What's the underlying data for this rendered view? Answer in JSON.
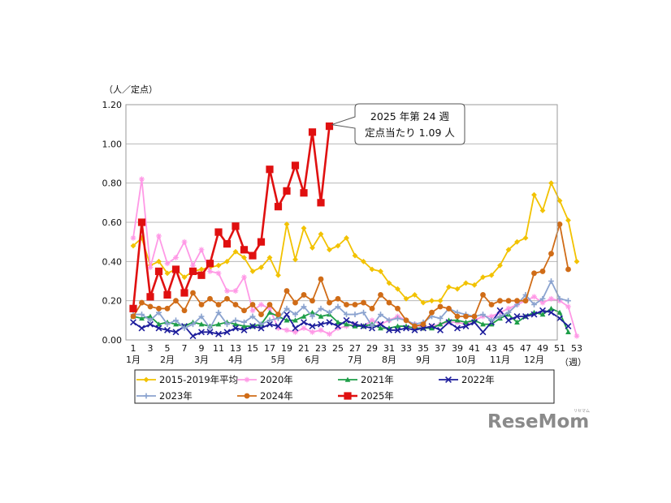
{
  "chart_data": {
    "type": "line",
    "ylabel": "（人／定点）",
    "xunit": "（週）",
    "ylim": [
      0,
      1.2
    ],
    "yticks": [
      "0.00",
      "0.20",
      "0.40",
      "0.60",
      "0.80",
      "1.00",
      "1.20"
    ],
    "xtick_weeks": [
      1,
      3,
      5,
      7,
      9,
      11,
      13,
      15,
      17,
      19,
      21,
      23,
      25,
      27,
      29,
      31,
      33,
      35,
      37,
      39,
      41,
      43,
      45,
      47,
      49,
      51,
      53
    ],
    "month_labels": [
      {
        "week": 1,
        "label": "1月"
      },
      {
        "week": 5,
        "label": "2月"
      },
      {
        "week": 9,
        "label": "3月"
      },
      {
        "week": 13,
        "label": "4月"
      },
      {
        "week": 18,
        "label": "5月"
      },
      {
        "week": 22,
        "label": "6月"
      },
      {
        "week": 27,
        "label": "7月"
      },
      {
        "week": 31,
        "label": "8月"
      },
      {
        "week": 35,
        "label": "9月"
      },
      {
        "week": 40,
        "label": "10月"
      },
      {
        "week": 44,
        "label": "11月"
      },
      {
        "week": 48,
        "label": "12月"
      }
    ],
    "grid": true,
    "legend_position": "bottom",
    "series": [
      {
        "name": "2015-2019年平均",
        "color": "#f2c200",
        "marker": "diamond",
        "values": [
          0.48,
          0.52,
          0.38,
          0.4,
          0.34,
          0.36,
          0.32,
          0.35,
          0.36,
          0.37,
          0.38,
          0.4,
          0.45,
          0.42,
          0.35,
          0.37,
          0.42,
          0.33,
          0.59,
          0.41,
          0.57,
          0.47,
          0.54,
          0.46,
          0.48,
          0.52,
          0.43,
          0.4,
          0.36,
          0.35,
          0.29,
          0.26,
          0.21,
          0.23,
          0.19,
          0.2,
          0.2,
          0.27,
          0.26,
          0.29,
          0.28,
          0.32,
          0.33,
          0.38,
          0.46,
          0.5,
          0.52,
          0.74,
          0.66,
          0.8,
          0.71,
          0.61,
          0.4
        ]
      },
      {
        "name": "2020年",
        "color": "#ff99e6",
        "marker": "star",
        "values": [
          0.52,
          0.82,
          0.37,
          0.53,
          0.39,
          0.42,
          0.5,
          0.38,
          0.46,
          0.35,
          0.34,
          0.25,
          0.25,
          0.32,
          0.15,
          0.18,
          0.16,
          0.06,
          0.05,
          0.04,
          0.06,
          0.04,
          0.05,
          0.03,
          0.06,
          0.07,
          0.08,
          0.07,
          0.1,
          0.08,
          0.1,
          0.12,
          0.1,
          0.08,
          0.06,
          0.07,
          0.08,
          0.09,
          0.09,
          0.08,
          0.1,
          0.12,
          0.12,
          0.14,
          0.16,
          0.18,
          0.2,
          0.22,
          0.19,
          0.21,
          0.2,
          0.17,
          0.02
        ]
      },
      {
        "name": "2021年",
        "color": "#1e9e48",
        "marker": "triangle",
        "values": [
          0.12,
          0.11,
          0.12,
          0.08,
          0.09,
          0.08,
          0.07,
          0.09,
          0.08,
          0.07,
          0.08,
          0.09,
          0.08,
          0.07,
          0.07,
          0.08,
          0.14,
          0.12,
          0.1,
          0.1,
          0.12,
          0.14,
          0.12,
          0.13,
          0.09,
          0.08,
          0.07,
          0.07,
          0.08,
          0.06,
          0.06,
          0.07,
          0.07,
          0.06,
          0.06,
          0.06,
          0.08,
          0.1,
          0.1,
          0.09,
          0.1,
          0.08,
          0.08,
          0.11,
          0.13,
          0.09,
          0.12,
          0.14,
          0.13,
          0.16,
          0.14,
          0.04,
          null
        ]
      },
      {
        "name": "2022年",
        "color": "#1d1d9c",
        "marker": "x",
        "values": [
          0.09,
          0.06,
          0.08,
          0.06,
          0.05,
          0.04,
          0.07,
          0.02,
          0.04,
          0.04,
          0.03,
          0.04,
          0.06,
          0.05,
          0.07,
          0.06,
          0.08,
          0.07,
          0.13,
          0.06,
          0.09,
          0.07,
          0.08,
          0.09,
          0.07,
          0.1,
          0.08,
          0.07,
          0.06,
          0.08,
          0.05,
          0.05,
          0.06,
          0.05,
          0.06,
          0.07,
          0.05,
          0.09,
          0.06,
          0.07,
          0.09,
          0.04,
          0.09,
          0.15,
          0.1,
          0.12,
          0.12,
          0.13,
          0.15,
          0.14,
          0.11,
          0.07,
          null
        ]
      },
      {
        "name": "2023年",
        "color": "#8ba3cf",
        "marker": "cross",
        "values": [
          0.13,
          0.13,
          0.1,
          0.14,
          0.08,
          0.1,
          0.06,
          0.08,
          0.12,
          0.06,
          0.14,
          0.08,
          0.1,
          0.09,
          0.12,
          0.08,
          0.1,
          0.11,
          0.16,
          0.13,
          0.17,
          0.12,
          0.16,
          0.14,
          0.17,
          0.13,
          0.13,
          0.14,
          0.07,
          0.13,
          0.1,
          0.11,
          0.1,
          0.08,
          0.09,
          0.12,
          0.11,
          0.16,
          0.14,
          0.13,
          0.12,
          0.13,
          0.1,
          0.12,
          0.14,
          0.18,
          0.23,
          0.18,
          0.21,
          0.3,
          0.21,
          0.2,
          null
        ]
      },
      {
        "name": "2024年",
        "color": "#d06c17",
        "marker": "circle",
        "values": [
          0.12,
          0.19,
          0.17,
          0.16,
          0.16,
          0.2,
          0.15,
          0.24,
          0.18,
          0.21,
          0.18,
          0.21,
          0.18,
          0.15,
          0.18,
          0.13,
          0.18,
          0.13,
          0.25,
          0.19,
          0.23,
          0.2,
          0.31,
          0.19,
          0.21,
          0.18,
          0.18,
          0.19,
          0.16,
          0.23,
          0.19,
          0.16,
          0.1,
          0.07,
          0.08,
          0.14,
          0.17,
          0.16,
          0.12,
          0.12,
          0.12,
          0.23,
          0.18,
          0.2,
          0.2,
          0.2,
          0.2,
          0.34,
          0.35,
          0.44,
          0.59,
          0.36,
          null
        ]
      },
      {
        "name": "2025年",
        "color": "#e01010",
        "marker": "square",
        "values": [
          0.16,
          0.6,
          0.22,
          0.35,
          0.23,
          0.36,
          0.24,
          0.35,
          0.33,
          0.39,
          0.55,
          0.49,
          0.58,
          0.46,
          0.43,
          0.5,
          0.87,
          0.68,
          0.76,
          0.89,
          0.75,
          1.06,
          0.7,
          1.09
        ]
      }
    ],
    "annotation": {
      "line1": "2025 年第 24 週",
      "line2": "定点当たり 1.09 人",
      "week": 24,
      "value": 1.09
    }
  },
  "logo": {
    "text": "ReseMom",
    "reading": "リセマム"
  }
}
